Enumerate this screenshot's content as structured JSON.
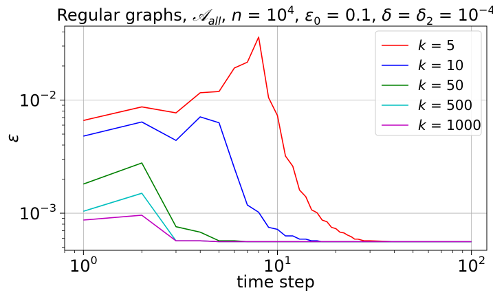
{
  "chart_data": {
    "type": "line",
    "title": "Regular graphs, 𝒜_all, n = 10^4, ε_0 = 0.1, δ = δ_2 = 10^-4",
    "xlabel": "time step",
    "ylabel": "ε",
    "xscale": "log",
    "yscale": "log",
    "xlim": [
      0.8,
      120
    ],
    "ylim": [
      0.00047,
      0.045
    ],
    "grid": true,
    "legend_position": "top-right",
    "x_major_ticks": [
      1,
      10,
      100
    ],
    "y_major_ticks": [
      0.001,
      0.01
    ],
    "series": [
      {
        "name": "k = 5",
        "color": "#ff0000",
        "x": [
          1,
          2,
          3,
          4,
          5,
          6,
          7,
          8,
          9,
          10,
          11,
          12,
          13,
          14,
          15,
          16,
          17,
          18,
          19,
          20,
          21,
          22,
          23,
          24,
          25,
          26,
          27,
          28,
          29,
          30,
          40,
          50,
          60,
          70,
          80,
          90,
          100
        ],
        "y": [
          0.0066,
          0.0087,
          0.0077,
          0.0116,
          0.0119,
          0.0192,
          0.0216,
          0.036,
          0.0105,
          0.0073,
          0.0032,
          0.0026,
          0.0016,
          0.0014,
          0.00107,
          0.00101,
          0.00087,
          0.00084,
          0.00075,
          0.00073,
          0.00068,
          0.00067,
          0.00064,
          0.00062,
          0.00059,
          0.00059,
          0.00058,
          0.00057,
          0.00057,
          0.00057,
          0.00056,
          0.00056,
          0.00056,
          0.00056,
          0.00056,
          0.00056,
          0.00056
        ]
      },
      {
        "name": "k = 10",
        "color": "#0000ff",
        "x": [
          1,
          2,
          3,
          4,
          5,
          6,
          7,
          8,
          9,
          10,
          11,
          12,
          13,
          14,
          15,
          16,
          17,
          18,
          19,
          20,
          30,
          40,
          50,
          60,
          70,
          80,
          90,
          100
        ],
        "y": [
          0.0048,
          0.0064,
          0.0044,
          0.0071,
          0.0063,
          0.0025,
          0.00118,
          0.00102,
          0.00075,
          0.00072,
          0.00063,
          0.00063,
          0.00059,
          0.00059,
          0.00057,
          0.00057,
          0.00056,
          0.00056,
          0.00056,
          0.00056,
          0.00056,
          0.00056,
          0.00056,
          0.00056,
          0.00056,
          0.00056,
          0.00056,
          0.00056
        ]
      },
      {
        "name": "k = 50",
        "color": "#008000",
        "x": [
          1,
          2,
          3,
          4,
          5,
          6,
          7,
          8,
          9,
          10,
          20,
          30,
          40,
          50,
          60,
          70,
          80,
          90,
          100
        ],
        "y": [
          0.00181,
          0.00278,
          0.00076,
          0.00068,
          0.00057,
          0.00057,
          0.00056,
          0.00056,
          0.00056,
          0.00056,
          0.00056,
          0.00056,
          0.00056,
          0.00056,
          0.00056,
          0.00056,
          0.00056,
          0.00056,
          0.00056
        ]
      },
      {
        "name": "k = 500",
        "color": "#00bfbf",
        "x": [
          1,
          2,
          3,
          4,
          5,
          6,
          7,
          8,
          9,
          10,
          20,
          30,
          40,
          50,
          60,
          70,
          80,
          90,
          100
        ],
        "y": [
          0.00104,
          0.0015,
          0.00057,
          0.00057,
          0.00056,
          0.00056,
          0.00056,
          0.00056,
          0.00056,
          0.00056,
          0.00056,
          0.00056,
          0.00056,
          0.00056,
          0.00056,
          0.00056,
          0.00056,
          0.00056,
          0.00056
        ]
      },
      {
        "name": "k = 1000",
        "color": "#bf00bf",
        "x": [
          1,
          2,
          3,
          4,
          5,
          6,
          7,
          8,
          9,
          10,
          20,
          30,
          40,
          50,
          60,
          70,
          80,
          90,
          100
        ],
        "y": [
          0.00087,
          0.00096,
          0.00057,
          0.00057,
          0.00056,
          0.00056,
          0.00056,
          0.00056,
          0.00056,
          0.00056,
          0.00056,
          0.00056,
          0.00056,
          0.00056,
          0.00056,
          0.00056,
          0.00056,
          0.00056,
          0.00056
        ]
      }
    ]
  }
}
